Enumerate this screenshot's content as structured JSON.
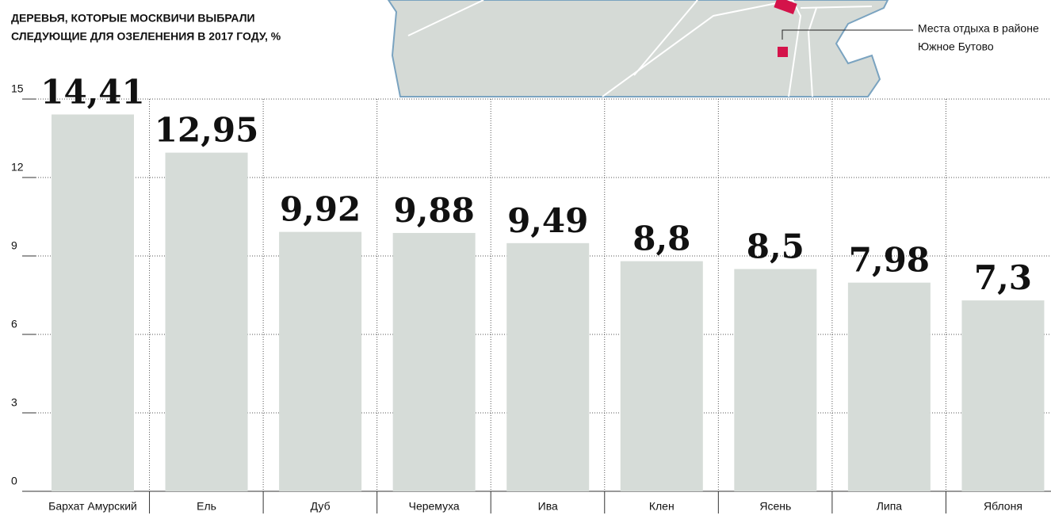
{
  "chart_data": {
    "type": "bar",
    "title": [
      "ДЕРЕВЬЯ, КОТОРЫЕ МОСКВИЧИ ВЫБРАЛИ",
      "СЛЕДУЮЩИЕ ДЛЯ ОЗЕЛЕНЕНИЯ В 2017 ГОДУ, %"
    ],
    "annotation": [
      "Места отдыха в районе",
      "Южное Бутово"
    ],
    "categories": [
      "Бархат Амурский",
      "Ель",
      "Дуб",
      "Черемуха",
      "Ива",
      "Клен",
      "Ясень",
      "Липа",
      "Яблоня"
    ],
    "values": [
      14.41,
      12.95,
      9.92,
      9.88,
      9.49,
      8.8,
      8.5,
      7.98,
      7.3
    ],
    "value_labels": [
      "14,41",
      "12,95",
      "9,92",
      "9,88",
      "9,49",
      "8,8",
      "8,5",
      "7,98",
      "7,3"
    ],
    "color": "#d6dcd8",
    "ylim": [
      0,
      15
    ],
    "yticks": [
      0,
      3,
      6,
      9,
      12,
      15
    ],
    "grid": true
  }
}
